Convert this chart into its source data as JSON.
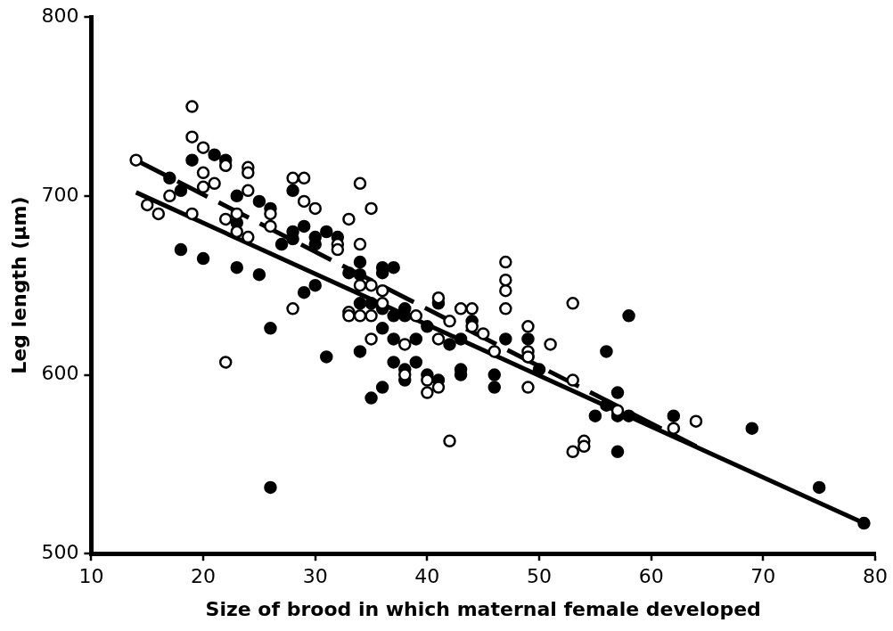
{
  "chart_data": {
    "type": "scatter",
    "xlabel": "Size of brood in which maternal female developed",
    "ylabel": "Leg length (µm)",
    "xlim": [
      10,
      80
    ],
    "xticks": [
      10,
      20,
      30,
      40,
      50,
      60,
      70,
      80
    ],
    "ylim": [
      500,
      800
    ],
    "yticks": [
      500,
      600,
      700,
      800
    ],
    "grid": false,
    "legend": false,
    "marker": "circle",
    "series": [
      {
        "color": "#000000",
        "x": [
          14,
          15,
          16,
          17,
          19,
          19,
          19,
          20,
          20,
          20,
          21,
          22,
          22,
          22,
          23,
          23,
          24,
          24,
          24,
          24,
          26,
          26,
          28,
          28,
          29,
          29,
          30,
          32,
          32,
          33,
          33,
          33,
          34,
          34,
          34,
          34,
          35,
          35,
          35,
          35,
          36,
          36,
          38,
          38,
          39,
          40,
          40,
          41,
          41,
          41,
          42,
          42,
          43,
          44,
          44,
          45,
          46,
          47,
          47,
          47,
          47,
          49,
          49,
          49,
          49,
          51,
          53,
          53,
          54,
          54,
          53,
          62,
          64,
          57
        ],
        "values": [
          720,
          695,
          690,
          700,
          750,
          733,
          690,
          727,
          713,
          705,
          707,
          717,
          687,
          607,
          690,
          680,
          716,
          713,
          703,
          677,
          690,
          683,
          710,
          637,
          710,
          697,
          693,
          673,
          670,
          687,
          635,
          633,
          707,
          673,
          650,
          633,
          693,
          650,
          633,
          620,
          647,
          640,
          617,
          600,
          633,
          597,
          590,
          643,
          620,
          593,
          563,
          630,
          637,
          637,
          627,
          623,
          613,
          663,
          653,
          647,
          637,
          627,
          613,
          610,
          593,
          617,
          640,
          597,
          563,
          560,
          557,
          570,
          574,
          580
        ]
      },
      {
        "color": "#000000",
        "x": [
          17,
          18,
          18,
          19,
          20,
          21,
          22,
          23,
          23,
          23,
          25,
          25,
          26,
          26,
          26,
          27,
          28,
          28,
          28,
          29,
          29,
          30,
          30,
          30,
          31,
          31,
          32,
          33,
          34,
          34,
          34,
          34,
          35,
          35,
          36,
          36,
          36,
          36,
          36,
          37,
          37,
          37,
          37,
          38,
          38,
          38,
          38,
          39,
          39,
          40,
          40,
          41,
          41,
          42,
          43,
          43,
          43,
          44,
          46,
          46,
          47,
          49,
          49,
          50,
          55,
          56,
          56,
          57,
          57,
          57,
          58,
          58,
          62,
          69,
          75,
          79
        ],
        "values": [
          710,
          703,
          670,
          720,
          665,
          723,
          720,
          700,
          685,
          660,
          697,
          656,
          693,
          626,
          537,
          673,
          703,
          680,
          676,
          683,
          646,
          677,
          673,
          650,
          680,
          610,
          677,
          657,
          663,
          656,
          640,
          613,
          640,
          587,
          660,
          657,
          637,
          626,
          593,
          660,
          633,
          620,
          607,
          637,
          633,
          603,
          597,
          620,
          607,
          627,
          600,
          640,
          597,
          617,
          620,
          603,
          600,
          630,
          600,
          593,
          620,
          620,
          610,
          603,
          577,
          613,
          583,
          590,
          577,
          557,
          633,
          577,
          577,
          570,
          537,
          517
        ]
      },
      {
        "type": "line",
        "color": "#000000",
        "line_style": "solid",
        "marker": "none",
        "x": [
          14,
          79
        ],
        "values": [
          702,
          517
        ]
      },
      {
        "type": "line",
        "color": "#000000",
        "line_style": "dashed",
        "marker": "none",
        "x": [
          14,
          64
        ],
        "values": [
          720,
          560
        ]
      }
    ]
  }
}
